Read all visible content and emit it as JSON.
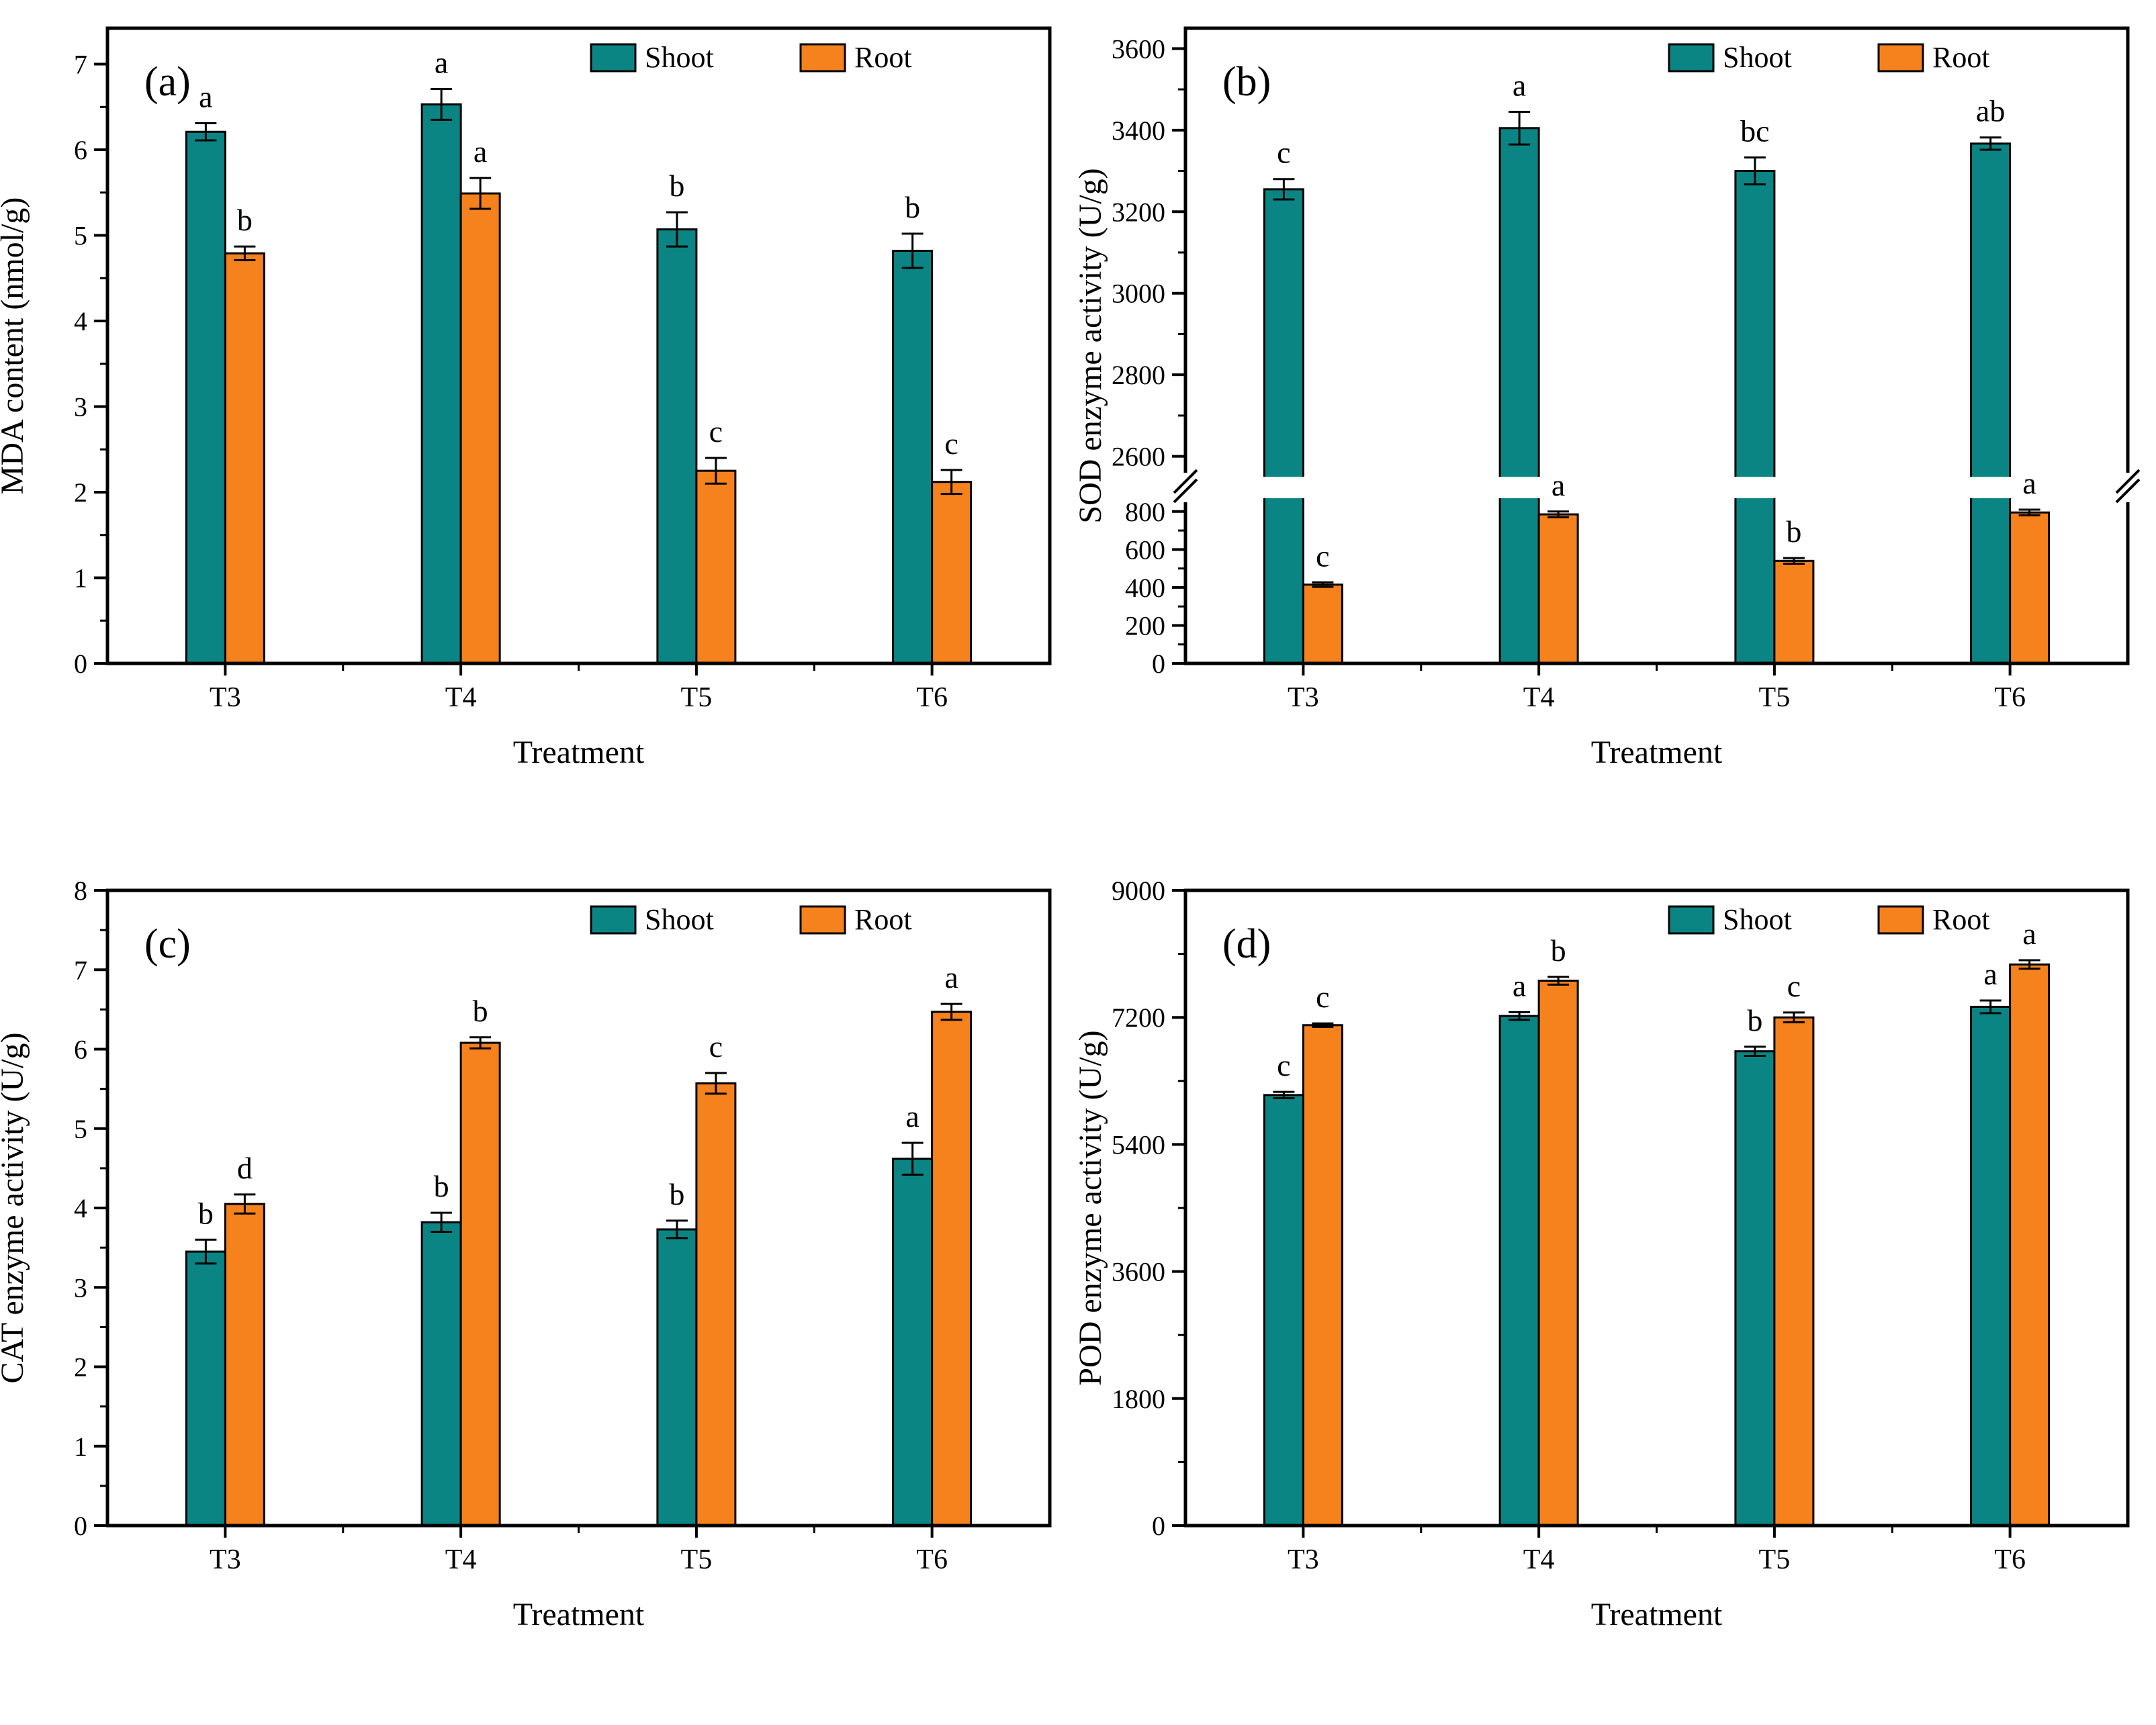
{
  "figure": {
    "background": "#ffffff",
    "colors": {
      "shoot": "#0B8584",
      "root": "#F6821E",
      "axis": "#000000",
      "error": "#000000"
    },
    "legend": {
      "items": [
        {
          "label": "Shoot",
          "color_key": "shoot"
        },
        {
          "label": "Root",
          "color_key": "root"
        }
      ]
    },
    "xlabel": "Treatment",
    "categories": [
      "T3",
      "T4",
      "T5",
      "T6"
    ]
  },
  "chart_data": [
    {
      "type": "bar",
      "panel_label": "(a)",
      "title": "MDA content by treatment",
      "ylabel": "MDA content (nmol/g)",
      "xlabel": "Treatment",
      "categories": [
        "T3",
        "T4",
        "T5",
        "T6"
      ],
      "legend": [
        "Shoot",
        "Root"
      ],
      "legend_position": "top-right",
      "grid": false,
      "ylim": [
        0,
        7.42
      ],
      "yticks": [
        0,
        1,
        2,
        3,
        4,
        5,
        6,
        7
      ],
      "minor_step": 0.5,
      "series": [
        {
          "name": "Shoot",
          "values": [
            6.21,
            6.53,
            5.07,
            4.82
          ],
          "errors": [
            0.1,
            0.18,
            0.2,
            0.2
          ],
          "sig_letters": [
            "a",
            "a",
            "b",
            "b"
          ]
        },
        {
          "name": "Root",
          "values": [
            4.79,
            5.49,
            2.25,
            2.12
          ],
          "errors": [
            0.08,
            0.18,
            0.15,
            0.14
          ],
          "sig_letters": [
            "b",
            "a",
            "c",
            "c"
          ]
        }
      ]
    },
    {
      "type": "bar",
      "panel_label": "(b)",
      "title": "SOD enzyme activity by treatment",
      "ylabel": "SOD enzyme activity (U/g)",
      "xlabel": "Treatment",
      "categories": [
        "T3",
        "T4",
        "T5",
        "T6"
      ],
      "legend": [
        "Shoot",
        "Root"
      ],
      "legend_position": "top-right",
      "grid": false,
      "axis_break": {
        "lower_lim": [
          0,
          870
        ],
        "lower_ticks": [
          0,
          200,
          400,
          600,
          800
        ],
        "upper_lim": [
          2550,
          3650
        ],
        "upper_ticks": [
          2600,
          2800,
          3000,
          3200,
          3400,
          3600
        ],
        "minor_step": 100
      },
      "series": [
        {
          "name": "Shoot",
          "values": [
            3255,
            3405,
            3300,
            3367
          ],
          "errors": [
            25,
            40,
            33,
            15
          ],
          "sig_letters": [
            "c",
            "a",
            "bc",
            "ab"
          ]
        },
        {
          "name": "Root",
          "values": [
            415,
            785,
            540,
            795
          ],
          "errors": [
            12,
            15,
            15,
            15
          ],
          "sig_letters": [
            "c",
            "a",
            "b",
            "a"
          ]
        }
      ]
    },
    {
      "type": "bar",
      "panel_label": "(c)",
      "title": "CAT enzyme activity by treatment",
      "ylabel": "CAT enzyme activity (U/g)",
      "xlabel": "Treatment",
      "categories": [
        "T3",
        "T4",
        "T5",
        "T6"
      ],
      "legend": [
        "Shoot",
        "Root"
      ],
      "legend_position": "top-right",
      "grid": false,
      "ylim": [
        0,
        8
      ],
      "yticks": [
        0,
        1,
        2,
        3,
        4,
        5,
        6,
        7,
        8
      ],
      "minor_step": 0.5,
      "series": [
        {
          "name": "Shoot",
          "values": [
            3.45,
            3.82,
            3.73,
            4.62
          ],
          "errors": [
            0.15,
            0.12,
            0.11,
            0.2
          ],
          "sig_letters": [
            "b",
            "b",
            "b",
            "a"
          ]
        },
        {
          "name": "Root",
          "values": [
            4.05,
            6.08,
            5.57,
            6.47
          ],
          "errors": [
            0.12,
            0.07,
            0.13,
            0.1
          ],
          "sig_letters": [
            "d",
            "b",
            "c",
            "a"
          ]
        }
      ]
    },
    {
      "type": "bar",
      "panel_label": "(d)",
      "title": "POD enzyme activity by treatment",
      "ylabel": "POD enzyme activity (U/g)",
      "xlabel": "Treatment",
      "categories": [
        "T3",
        "T4",
        "T5",
        "T6"
      ],
      "legend": [
        "Shoot",
        "Root"
      ],
      "legend_position": "top-right",
      "grid": false,
      "ylim": [
        0,
        9000
      ],
      "yticks": [
        0,
        1800,
        3600,
        5400,
        7200,
        9000
      ],
      "minor_step": 900,
      "series": [
        {
          "name": "Shoot",
          "values": [
            6100,
            7220,
            6720,
            7350
          ],
          "errors": [
            45,
            55,
            65,
            90
          ],
          "sig_letters": [
            "c",
            "a",
            "b",
            "a"
          ]
        },
        {
          "name": "Root",
          "values": [
            7090,
            7720,
            7200,
            7950
          ],
          "errors": [
            25,
            55,
            70,
            60
          ],
          "sig_letters": [
            "c",
            "b",
            "c",
            "a"
          ]
        }
      ]
    }
  ]
}
